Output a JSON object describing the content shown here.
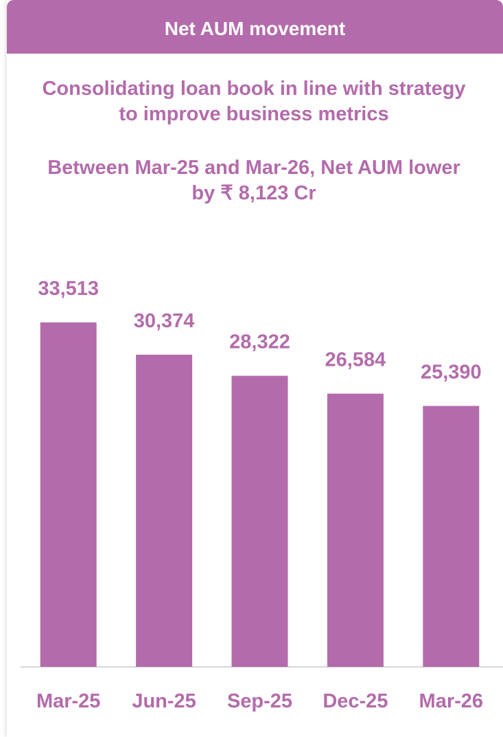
{
  "header": {
    "title": "Net AUM movement"
  },
  "chart_data": {
    "type": "bar",
    "title": "Consolidating loan book in line with strategy to improve business metrics",
    "subtitle": "Between Mar-25 and Mar-26, Net AUM lower by ₹ 8,123 Cr",
    "categories": [
      "Mar-25",
      "Jun-25",
      "Sep-25",
      "Dec-25",
      "Mar-26"
    ],
    "values": [
      33513,
      30374,
      28322,
      26584,
      25390
    ],
    "value_labels": [
      "33,513",
      "30,374",
      "28,322",
      "26,584",
      "25,390"
    ],
    "color": "#b36bab"
  }
}
